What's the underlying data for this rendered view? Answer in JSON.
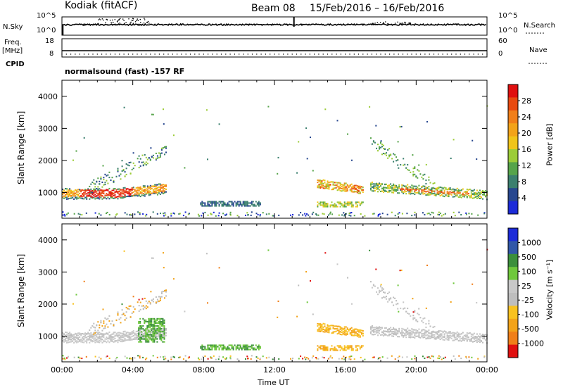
{
  "header": {
    "radar": "Kodiak (fitACF)",
    "beam": "Beam 08",
    "dates": "15/Feb/2016 – 16/Feb/2016",
    "program": "normalsound (fast) -157 RF"
  },
  "side_labels": {
    "nsky": "N.Sky",
    "freq": "Freq.",
    "freq_unit": "[MHz]",
    "cpid": "CPID",
    "nsearch": "N.Search",
    "nave": "Nave"
  },
  "colors": {
    "power_scale": [
      "#1c2bd8",
      "#27478f",
      "#3b7f6e",
      "#56a44a",
      "#9ccc38",
      "#f0c41a",
      "#f2a31a",
      "#f07f1a",
      "#e84a10",
      "#e01010"
    ],
    "velocity_scale": [
      "#e01010",
      "#f07f1a",
      "#f2a31a",
      "#f8c220",
      "#bebebe",
      "#c8c8c8",
      "#6fc83c",
      "#3b8f3c",
      "#3157a8",
      "#1c2bd8"
    ]
  },
  "chart_data": [
    {
      "type": "line",
      "title": "N.Sky / N.Search",
      "y_left_ticks": [
        "10^5",
        "10^0"
      ],
      "y_right_ticks": [
        "10^5",
        "10^0"
      ]
    },
    {
      "type": "line",
      "title": "Freq. / Nave",
      "y_left_ticks": [
        "18",
        "8"
      ],
      "y_right_ticks": [
        "60",
        "0"
      ],
      "freq_mhz": 8.0,
      "nave": 4
    },
    {
      "type": "heatmap",
      "title": "Power",
      "ylabel": "Slant Range [km]",
      "ylim": [
        200,
        4500
      ],
      "y_ticks": [
        1000,
        2000,
        3000,
        4000
      ],
      "xlim": [
        0,
        24
      ],
      "colorbar_label": "Power [dB]",
      "colorbar_range": [
        0,
        32
      ],
      "colorbar_ticks": [
        "4",
        "8",
        "12",
        "16",
        "20",
        "24",
        "28"
      ],
      "echo_regions": [
        {
          "t0": 0.0,
          "t1": 6.0,
          "r0": 700,
          "r1": 2400,
          "strength": "strong"
        },
        {
          "t0": 8.0,
          "t1": 11.5,
          "r0": 500,
          "r1": 700,
          "strength": "weak"
        },
        {
          "t0": 14.5,
          "t1": 17.0,
          "r0": 500,
          "r1": 1500,
          "strength": "medium"
        },
        {
          "t0": 17.5,
          "t1": 24.0,
          "r0": 700,
          "r1": 2800,
          "strength": "medium"
        }
      ]
    },
    {
      "type": "heatmap",
      "title": "Velocity",
      "ylabel": "Slant Range [km]",
      "xlabel": "Time UT",
      "ylim": [
        200,
        4500
      ],
      "y_ticks": [
        1000,
        2000,
        3000,
        4000
      ],
      "xlim": [
        0,
        24
      ],
      "x_ticks": [
        "00:00",
        "04:00",
        "08:00",
        "12:00",
        "16:00",
        "20:00",
        "00:00"
      ],
      "colorbar_label": "Velocity [m s⁻¹]",
      "colorbar_ticks": [
        "1000",
        "500",
        "100",
        "25",
        "-25",
        "-100",
        "-500",
        "-1000"
      ]
    }
  ]
}
